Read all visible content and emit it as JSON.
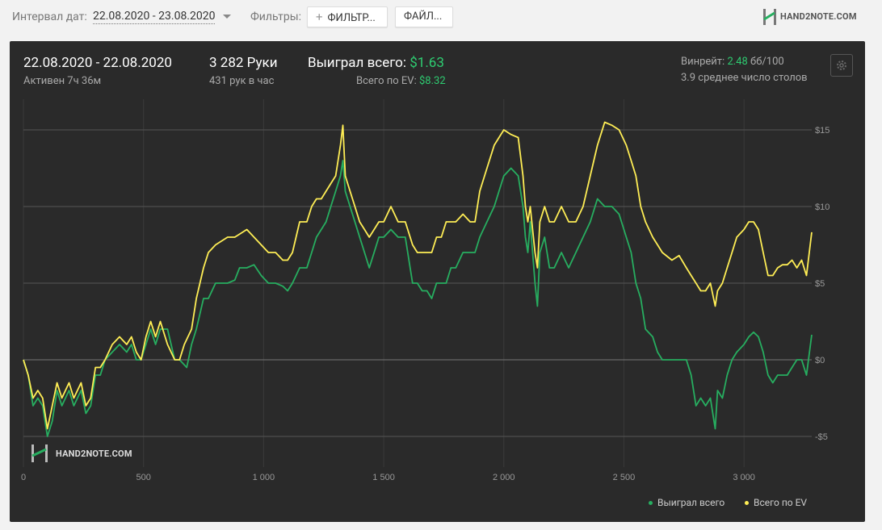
{
  "topbar": {
    "date_interval_label": "Интервал дат:",
    "date_interval_value": "22.08.2020 - 23.08.2020",
    "filters_label": "Фильтры:",
    "filters_button": "ФИЛЬТР...",
    "files_button": "ФАЙЛ...",
    "logo_text": "HAND2NOTE.COM"
  },
  "summary": {
    "date_range": "22.08.2020 - 22.08.2020",
    "active_time": "Активен 7ч 36м",
    "hands": "3 282 Руки",
    "hands_per_hour": "431 рук в час",
    "won_total_label": "Выиграл всего:",
    "won_total_value": "$1.63",
    "ev_total_label": "Всего по EV:",
    "ev_total_value": "$8.32",
    "winrate_label": "Винрейт:",
    "winrate_value": "2.48",
    "winrate_unit": "бб/100",
    "avg_tables": "3.9 среднее число столов"
  },
  "colors": {
    "panel_bg": "#2a2a2a",
    "won_line": "#27ae60",
    "ev_line": "#ffee55",
    "accent_green": "#2ecc71"
  },
  "chart_data": {
    "type": "line",
    "xlim": [
      0,
      3282
    ],
    "ylim": [
      -7,
      17
    ],
    "x_ticks": [
      0,
      500,
      1000,
      1500,
      2000,
      2500,
      3000
    ],
    "x_tick_labels": [
      "0",
      "500",
      "1 000",
      "1 500",
      "2 000",
      "2 500",
      "3 000"
    ],
    "y_ticks": [
      15,
      10,
      5,
      0,
      -5
    ],
    "y_tick_labels": [
      "$15",
      "$10",
      "$5",
      "$0",
      "-$5"
    ],
    "watermark": "HAND2NOTE.COM",
    "series": [
      {
        "name": "Выиграл всего",
        "color": "#27ae60",
        "points": [
          [
            0,
            0
          ],
          [
            20,
            -1
          ],
          [
            40,
            -3
          ],
          [
            60,
            -2.5
          ],
          [
            80,
            -3
          ],
          [
            100,
            -5
          ],
          [
            120,
            -4
          ],
          [
            140,
            -2
          ],
          [
            160,
            -3
          ],
          [
            190,
            -2
          ],
          [
            210,
            -3
          ],
          [
            240,
            -2
          ],
          [
            260,
            -3.5
          ],
          [
            280,
            -3
          ],
          [
            300,
            -1
          ],
          [
            320,
            -1
          ],
          [
            340,
            0
          ],
          [
            370,
            0.5
          ],
          [
            400,
            1
          ],
          [
            430,
            0.5
          ],
          [
            450,
            1
          ],
          [
            470,
            0
          ],
          [
            490,
            0
          ],
          [
            510,
            1
          ],
          [
            530,
            2
          ],
          [
            550,
            1
          ],
          [
            570,
            2
          ],
          [
            600,
            2
          ],
          [
            630,
            0
          ],
          [
            650,
            0
          ],
          [
            680,
            -0.5
          ],
          [
            700,
            1
          ],
          [
            720,
            2
          ],
          [
            750,
            4
          ],
          [
            770,
            4
          ],
          [
            800,
            5
          ],
          [
            850,
            5
          ],
          [
            880,
            5.2
          ],
          [
            900,
            6
          ],
          [
            930,
            6
          ],
          [
            960,
            6.2
          ],
          [
            990,
            5.5
          ],
          [
            1020,
            5
          ],
          [
            1050,
            5
          ],
          [
            1080,
            4.8
          ],
          [
            1100,
            4.5
          ],
          [
            1120,
            5
          ],
          [
            1150,
            6
          ],
          [
            1180,
            6
          ],
          [
            1200,
            7
          ],
          [
            1220,
            8
          ],
          [
            1240,
            8.5
          ],
          [
            1260,
            9
          ],
          [
            1280,
            10
          ],
          [
            1300,
            11
          ],
          [
            1320,
            12
          ],
          [
            1330,
            13
          ],
          [
            1340,
            11
          ],
          [
            1360,
            10
          ],
          [
            1380,
            9
          ],
          [
            1400,
            8
          ],
          [
            1420,
            7
          ],
          [
            1440,
            6
          ],
          [
            1460,
            7
          ],
          [
            1480,
            8
          ],
          [
            1500,
            8
          ],
          [
            1530,
            8.5
          ],
          [
            1560,
            8
          ],
          [
            1590,
            8
          ],
          [
            1620,
            5
          ],
          [
            1640,
            5
          ],
          [
            1660,
            4.5
          ],
          [
            1680,
            4.5
          ],
          [
            1700,
            4
          ],
          [
            1720,
            5
          ],
          [
            1740,
            5
          ],
          [
            1760,
            5
          ],
          [
            1780,
            6
          ],
          [
            1800,
            6
          ],
          [
            1830,
            7
          ],
          [
            1860,
            7
          ],
          [
            1880,
            7
          ],
          [
            1900,
            8
          ],
          [
            1930,
            9
          ],
          [
            1960,
            10
          ],
          [
            1980,
            11
          ],
          [
            2000,
            12
          ],
          [
            2030,
            12.5
          ],
          [
            2060,
            12
          ],
          [
            2080,
            10
          ],
          [
            2090,
            8
          ],
          [
            2100,
            7
          ],
          [
            2110,
            9
          ],
          [
            2120,
            7
          ],
          [
            2130,
            5
          ],
          [
            2140,
            3.5
          ],
          [
            2150,
            7
          ],
          [
            2170,
            8
          ],
          [
            2190,
            6
          ],
          [
            2210,
            6
          ],
          [
            2240,
            7
          ],
          [
            2270,
            6
          ],
          [
            2300,
            7
          ],
          [
            2330,
            8
          ],
          [
            2360,
            9
          ],
          [
            2390,
            10.5
          ],
          [
            2420,
            10
          ],
          [
            2450,
            10
          ],
          [
            2480,
            9.5
          ],
          [
            2510,
            8
          ],
          [
            2530,
            7
          ],
          [
            2550,
            5
          ],
          [
            2570,
            4
          ],
          [
            2590,
            2
          ],
          [
            2620,
            1.5
          ],
          [
            2640,
            0.5
          ],
          [
            2660,
            0
          ],
          [
            2700,
            0
          ],
          [
            2730,
            0
          ],
          [
            2760,
            0
          ],
          [
            2780,
            -1
          ],
          [
            2800,
            -3
          ],
          [
            2820,
            -2.5
          ],
          [
            2840,
            -3
          ],
          [
            2860,
            -2.5
          ],
          [
            2880,
            -4.5
          ],
          [
            2890,
            -2
          ],
          [
            2910,
            -2.5
          ],
          [
            2930,
            -1
          ],
          [
            2950,
            0
          ],
          [
            2970,
            0.5
          ],
          [
            3000,
            1
          ],
          [
            3020,
            1.5
          ],
          [
            3040,
            1.8
          ],
          [
            3060,
            1.5
          ],
          [
            3080,
            0.5
          ],
          [
            3100,
            -1
          ],
          [
            3120,
            -1.5
          ],
          [
            3140,
            -1
          ],
          [
            3160,
            -1
          ],
          [
            3180,
            -1
          ],
          [
            3200,
            -0.5
          ],
          [
            3220,
            0
          ],
          [
            3240,
            0
          ],
          [
            3260,
            -1
          ],
          [
            3282,
            1.63
          ]
        ]
      },
      {
        "name": "Всего по EV",
        "color": "#ffee55",
        "points": [
          [
            0,
            0
          ],
          [
            20,
            -1
          ],
          [
            40,
            -2.5
          ],
          [
            60,
            -2
          ],
          [
            80,
            -2.5
          ],
          [
            100,
            -4.5
          ],
          [
            120,
            -3
          ],
          [
            140,
            -1.5
          ],
          [
            160,
            -2.5
          ],
          [
            190,
            -1.5
          ],
          [
            210,
            -2.5
          ],
          [
            240,
            -1.5
          ],
          [
            260,
            -3
          ],
          [
            280,
            -2.5
          ],
          [
            300,
            -0.5
          ],
          [
            320,
            -0.5
          ],
          [
            340,
            0
          ],
          [
            370,
            1
          ],
          [
            400,
            1.5
          ],
          [
            430,
            1
          ],
          [
            450,
            1.5
          ],
          [
            470,
            0.5
          ],
          [
            490,
            0
          ],
          [
            510,
            1.5
          ],
          [
            530,
            2.5
          ],
          [
            550,
            1.5
          ],
          [
            570,
            2.5
          ],
          [
            600,
            1
          ],
          [
            630,
            0
          ],
          [
            650,
            0
          ],
          [
            670,
            1
          ],
          [
            700,
            2
          ],
          [
            720,
            4
          ],
          [
            750,
            6
          ],
          [
            770,
            7
          ],
          [
            800,
            7.5
          ],
          [
            850,
            8
          ],
          [
            880,
            8
          ],
          [
            900,
            8.2
          ],
          [
            930,
            8.5
          ],
          [
            960,
            8
          ],
          [
            990,
            7.5
          ],
          [
            1020,
            7
          ],
          [
            1050,
            7
          ],
          [
            1080,
            6.5
          ],
          [
            1100,
            6.5
          ],
          [
            1120,
            7
          ],
          [
            1150,
            9
          ],
          [
            1180,
            9
          ],
          [
            1200,
            10
          ],
          [
            1220,
            10.5
          ],
          [
            1240,
            10.5
          ],
          [
            1260,
            11
          ],
          [
            1280,
            11.5
          ],
          [
            1300,
            12
          ],
          [
            1320,
            14
          ],
          [
            1330,
            15.3
          ],
          [
            1340,
            12
          ],
          [
            1360,
            11
          ],
          [
            1380,
            10
          ],
          [
            1400,
            9
          ],
          [
            1420,
            8.5
          ],
          [
            1440,
            8
          ],
          [
            1460,
            8.5
          ],
          [
            1480,
            9
          ],
          [
            1500,
            9
          ],
          [
            1530,
            10
          ],
          [
            1560,
            9
          ],
          [
            1590,
            9
          ],
          [
            1620,
            7.5
          ],
          [
            1640,
            7
          ],
          [
            1660,
            7
          ],
          [
            1680,
            7
          ],
          [
            1700,
            7
          ],
          [
            1720,
            8
          ],
          [
            1740,
            8
          ],
          [
            1760,
            9
          ],
          [
            1780,
            9
          ],
          [
            1800,
            9
          ],
          [
            1830,
            9.5
          ],
          [
            1860,
            9
          ],
          [
            1880,
            9
          ],
          [
            1900,
            11
          ],
          [
            1930,
            12.5
          ],
          [
            1960,
            14
          ],
          [
            1980,
            14.5
          ],
          [
            2000,
            15
          ],
          [
            2030,
            14.7
          ],
          [
            2060,
            14.5
          ],
          [
            2080,
            12
          ],
          [
            2090,
            10
          ],
          [
            2100,
            9
          ],
          [
            2110,
            10
          ],
          [
            2120,
            8.5
          ],
          [
            2130,
            7
          ],
          [
            2140,
            6
          ],
          [
            2150,
            9
          ],
          [
            2170,
            10
          ],
          [
            2190,
            9
          ],
          [
            2210,
            9
          ],
          [
            2240,
            10
          ],
          [
            2270,
            9
          ],
          [
            2300,
            9
          ],
          [
            2330,
            10
          ],
          [
            2360,
            12
          ],
          [
            2390,
            14
          ],
          [
            2420,
            15.5
          ],
          [
            2450,
            15.3
          ],
          [
            2480,
            15
          ],
          [
            2510,
            14
          ],
          [
            2530,
            13
          ],
          [
            2550,
            12
          ],
          [
            2570,
            10
          ],
          [
            2590,
            9
          ],
          [
            2620,
            8
          ],
          [
            2640,
            7.5
          ],
          [
            2660,
            7
          ],
          [
            2700,
            6.5
          ],
          [
            2730,
            6.8
          ],
          [
            2760,
            6
          ],
          [
            2780,
            5.5
          ],
          [
            2800,
            5
          ],
          [
            2820,
            4.5
          ],
          [
            2840,
            4.5
          ],
          [
            2860,
            5
          ],
          [
            2880,
            3.5
          ],
          [
            2890,
            4.5
          ],
          [
            2910,
            5
          ],
          [
            2930,
            6
          ],
          [
            2950,
            7
          ],
          [
            2970,
            8
          ],
          [
            3000,
            8.5
          ],
          [
            3020,
            9
          ],
          [
            3040,
            9
          ],
          [
            3060,
            8.5
          ],
          [
            3080,
            7
          ],
          [
            3100,
            5.5
          ],
          [
            3120,
            5.5
          ],
          [
            3140,
            6
          ],
          [
            3160,
            6.2
          ],
          [
            3180,
            6.2
          ],
          [
            3200,
            6.5
          ],
          [
            3220,
            6
          ],
          [
            3240,
            6.5
          ],
          [
            3260,
            5.5
          ],
          [
            3282,
            8.32
          ]
        ]
      }
    ]
  }
}
